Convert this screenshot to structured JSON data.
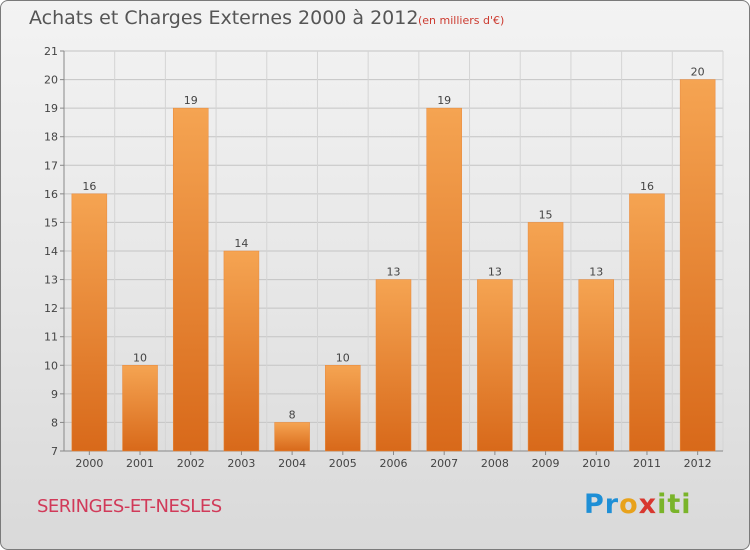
{
  "title": "Achats et Charges Externes 2000 à 2012",
  "subtitle": "(en milliers d'€)",
  "town": "SERINGES-ET-NESLES",
  "logo": {
    "text": "Proxiti",
    "part1": "Pr",
    "part2": "o",
    "part3": "x",
    "part4": "iti"
  },
  "colors": {
    "bar_top": "#f5a452",
    "bar_bottom": "#d8691a",
    "title": "#555555",
    "subtitle": "#cc3a2f",
    "town": "#d13a59"
  },
  "chart_data": {
    "type": "bar",
    "title": "Achats et Charges Externes 2000 à 2012",
    "subtitle": "(en milliers d'€)",
    "categories": [
      "2000",
      "2001",
      "2002",
      "2003",
      "2004",
      "2005",
      "2006",
      "2007",
      "2008",
      "2009",
      "2010",
      "2011",
      "2012"
    ],
    "values": [
      16,
      10,
      19,
      14,
      8,
      10,
      13,
      19,
      13,
      15,
      13,
      16,
      20
    ],
    "ylim": [
      7,
      21
    ],
    "yticks": [
      7,
      8,
      9,
      10,
      11,
      12,
      13,
      14,
      15,
      16,
      17,
      18,
      19,
      20,
      21
    ],
    "grid": true,
    "data_labels": true
  }
}
